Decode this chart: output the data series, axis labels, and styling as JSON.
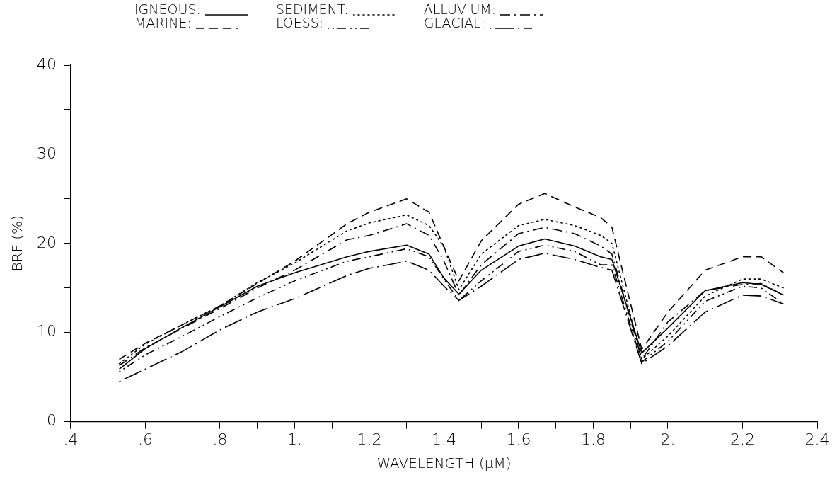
{
  "chart_data": {
    "type": "line",
    "xlabel": "WAVELENGTH (μM)",
    "ylabel": "BRF (%)",
    "legend": "top left",
    "grid": false,
    "x": [
      0.53,
      0.6,
      0.7,
      0.8,
      0.9,
      1.0,
      1.14,
      1.2,
      1.3,
      1.36,
      1.4,
      1.44,
      1.5,
      1.6,
      1.67,
      1.75,
      1.82,
      1.85,
      1.93,
      2.0,
      2.1,
      2.2,
      2.25,
      2.31
    ],
    "xlim": [
      0.4,
      2.4
    ],
    "xticks": [
      {
        "value": 0.4,
        "label": ".4"
      },
      {
        "value": 0.5,
        "label": null
      },
      {
        "value": 0.6,
        "label": ".6"
      },
      {
        "value": 0.7,
        "label": null
      },
      {
        "value": 0.8,
        "label": ".8"
      },
      {
        "value": 0.9,
        "label": null
      },
      {
        "value": 1.0,
        "label": "1."
      },
      {
        "value": 1.1,
        "label": null
      },
      {
        "value": 1.2,
        "label": "1.2"
      },
      {
        "value": 1.3,
        "label": null
      },
      {
        "value": 1.4,
        "label": "1.4"
      },
      {
        "value": 1.5,
        "label": null
      },
      {
        "value": 1.6,
        "label": "1.6"
      },
      {
        "value": 1.7,
        "label": null
      },
      {
        "value": 1.8,
        "label": "1.8"
      },
      {
        "value": 1.9,
        "label": null
      },
      {
        "value": 2.0,
        "label": "2."
      },
      {
        "value": 2.1,
        "label": null
      },
      {
        "value": 2.2,
        "label": "2.2"
      },
      {
        "value": 2.3,
        "label": null
      },
      {
        "value": 2.4,
        "label": "2.4"
      }
    ],
    "ylim": [
      0,
      40
    ],
    "yticks": [
      0,
      {
        "value": 5,
        "label": null
      },
      10,
      {
        "value": 15,
        "label": null
      },
      20,
      {
        "value": 25,
        "label": null
      },
      30,
      {
        "value": 35,
        "label": null
      },
      40
    ],
    "series": [
      {
        "name": "IGNEOUS:",
        "color": "#000000",
        "line_style": "solid",
        "values": [
          5.9,
          8.2,
          10.6,
          12.9,
          15.2,
          16.7,
          18.5,
          19.1,
          19.8,
          18.8,
          16.1,
          14.3,
          17.0,
          19.7,
          20.5,
          19.7,
          18.5,
          18.2,
          7.7,
          10.5,
          14.7,
          15.6,
          15.4,
          14.2
        ]
      },
      {
        "name": "SEDIMENT:",
        "color": "#000000",
        "line_style": "dotted",
        "values": [
          6.5,
          8.7,
          10.9,
          13.0,
          15.6,
          17.8,
          21.4,
          22.3,
          23.2,
          22.0,
          19.6,
          14.8,
          18.8,
          22.0,
          22.7,
          22.0,
          20.9,
          20.0,
          7.0,
          9.6,
          14.1,
          16.0,
          16.0,
          15.0
        ]
      },
      {
        "name": "ALLUVIUM:",
        "color": "#000000",
        "line_style": "dashdot",
        "values": [
          6.3,
          8.3,
          10.5,
          12.7,
          15.0,
          17.0,
          20.4,
          20.9,
          22.2,
          20.9,
          18.0,
          14.2,
          17.6,
          21.1,
          21.8,
          21.1,
          19.7,
          18.8,
          7.0,
          11.2,
          14.7,
          15.4,
          15.5,
          14.2
        ]
      },
      {
        "name": "MARINE:",
        "color": "#000000",
        "line_style": "dashed",
        "values": [
          7.0,
          8.8,
          10.9,
          13.0,
          15.5,
          18.0,
          22.2,
          23.5,
          25.0,
          23.5,
          19.6,
          15.8,
          20.3,
          24.4,
          25.6,
          24.1,
          22.9,
          21.8,
          8.1,
          12.3,
          17.0,
          18.5,
          18.5,
          16.7
        ]
      },
      {
        "name": "LOESS:",
        "color": "#000000",
        "line_style": "dashdotdot",
        "values": [
          5.6,
          7.5,
          9.6,
          11.8,
          13.9,
          15.8,
          18.0,
          18.5,
          19.4,
          18.5,
          16.0,
          13.6,
          15.8,
          19.1,
          19.8,
          19.1,
          17.6,
          17.6,
          6.7,
          9.0,
          13.5,
          15.2,
          15.0,
          13.2
        ]
      },
      {
        "name": "GLACIAL:",
        "color": "#000000",
        "line_style": "dotlongdash",
        "values": [
          4.5,
          5.9,
          7.9,
          10.3,
          12.3,
          13.8,
          16.4,
          17.2,
          18.0,
          17.0,
          15.2,
          13.6,
          15.2,
          18.2,
          18.9,
          18.2,
          17.3,
          17.0,
          6.5,
          8.5,
          12.3,
          14.2,
          14.1,
          13.2
        ]
      }
    ]
  }
}
